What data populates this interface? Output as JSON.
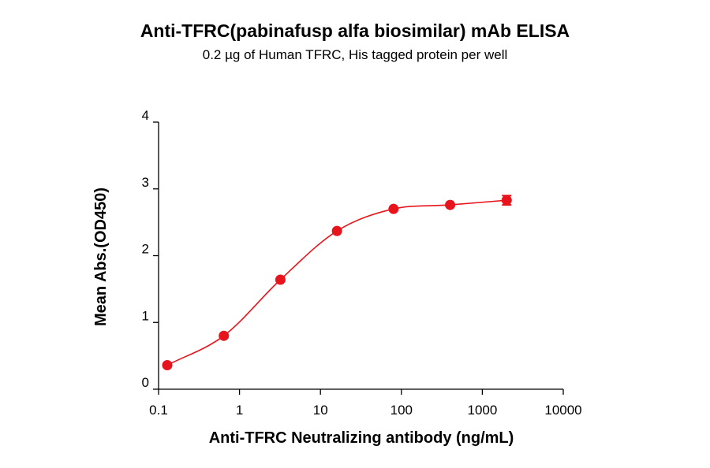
{
  "chart_data": {
    "type": "scatter",
    "title": "Anti-TFRC(pabinafusp alfa biosimilar) mAb ELISA",
    "subtitle": "0.2 µg of Human TFRC, His tagged protein per well",
    "xlabel": "Anti-TFRC Neutralizing antibody (ng/mL)",
    "ylabel": "Mean Abs.(OD450)",
    "xscale": "log",
    "xlim": [
      0.1,
      10000
    ],
    "ylim": [
      0,
      4
    ],
    "x_ticks": [
      "0.1",
      "1",
      "10",
      "100",
      "1000",
      "10000"
    ],
    "y_ticks": [
      "0",
      "1",
      "2",
      "3",
      "4"
    ],
    "series": [
      {
        "x": [
          0.128,
          0.64,
          3.2,
          16,
          80,
          400,
          2000
        ],
        "y": [
          0.36,
          0.8,
          1.64,
          2.37,
          2.7,
          2.76,
          2.83
        ],
        "yerr": [
          0.01,
          0.01,
          0.01,
          0.01,
          0.01,
          0.01,
          0.07
        ],
        "color": "#e8141c",
        "fit": "four-parameter logistic"
      }
    ],
    "grid": false
  }
}
